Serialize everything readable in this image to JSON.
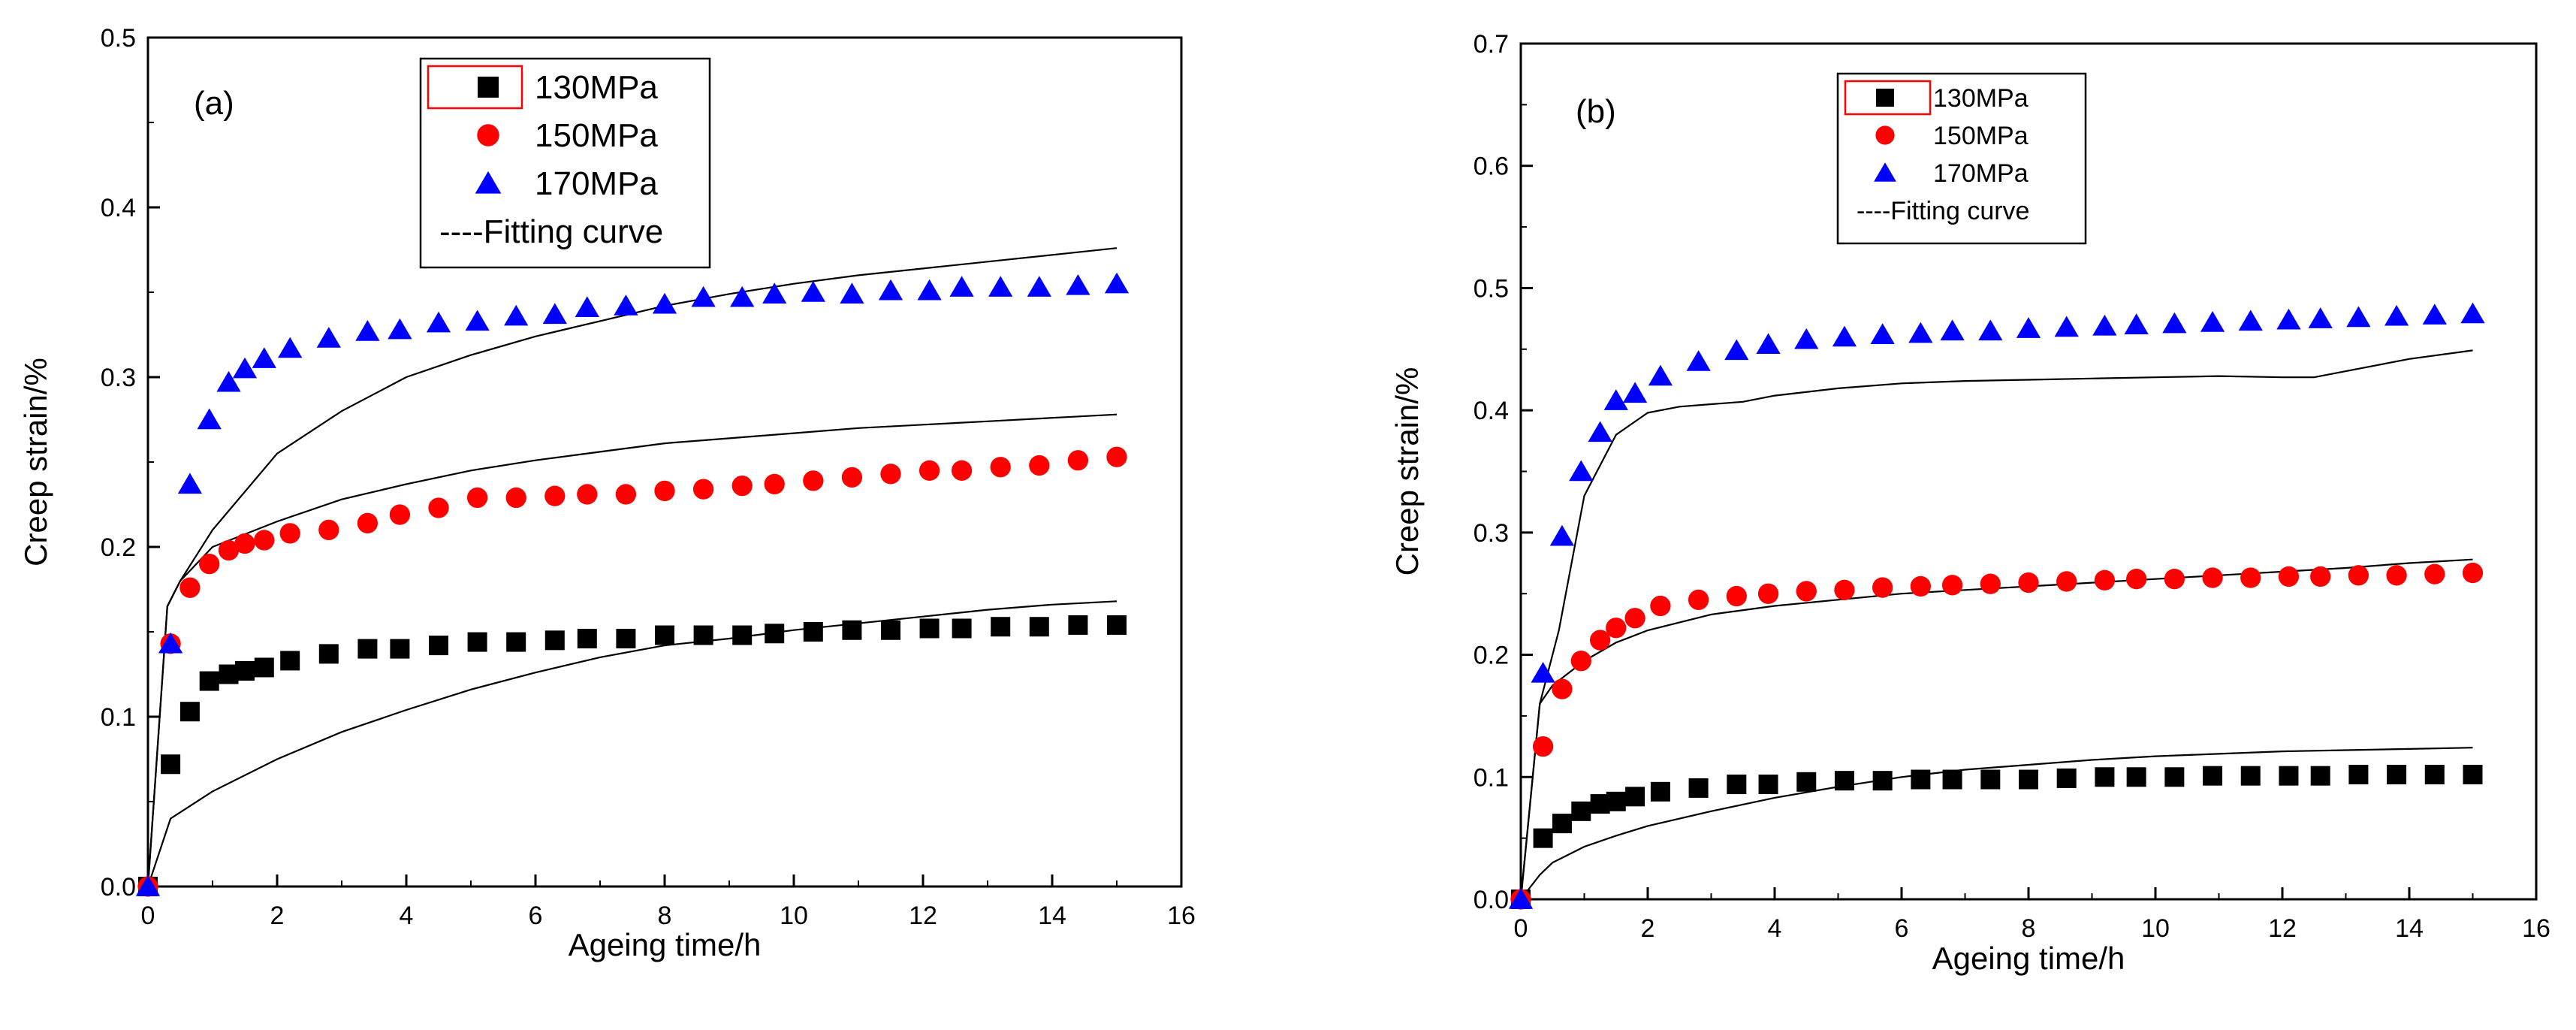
{
  "colors": {
    "s130": "#000000",
    "s150": "#ff0000",
    "s170": "#0000ff",
    "fit": "#000000",
    "legend_highlight": "#ff0000"
  },
  "chart_data": [
    {
      "type": "scatter",
      "panel_label": "(a)",
      "xlabel": "Ageing time/h",
      "ylabel": "Creep strain/%",
      "xlim": [
        0,
        16
      ],
      "ylim": [
        0,
        0.5
      ],
      "xticks": [
        "0",
        "2",
        "4",
        "6",
        "8",
        "10",
        "12",
        "14",
        "16"
      ],
      "yticks": [
        "0.0",
        "0.1",
        "0.2",
        "0.3",
        "0.4",
        "0.5"
      ],
      "legend": {
        "placement": "top-center",
        "entries": [
          "130MPa",
          "150MPa",
          "170MPa",
          "----Fitting curve"
        ]
      },
      "series": [
        {
          "name": "130MPa",
          "marker": "square",
          "color": "#000000",
          "x": [
            0,
            0.35,
            0.65,
            0.95,
            1.25,
            1.5,
            1.8,
            2.2,
            2.8,
            3.4,
            3.9,
            4.5,
            5.1,
            5.7,
            6.3,
            6.8,
            7.4,
            8.0,
            8.6,
            9.2,
            9.7,
            10.3,
            10.9,
            11.5,
            12.1,
            12.6,
            13.2,
            13.8,
            14.4,
            15.0
          ],
          "y": [
            0,
            0.072,
            0.103,
            0.121,
            0.125,
            0.127,
            0.129,
            0.133,
            0.137,
            0.14,
            0.14,
            0.142,
            0.144,
            0.144,
            0.145,
            0.146,
            0.146,
            0.148,
            0.148,
            0.148,
            0.149,
            0.15,
            0.151,
            0.151,
            0.152,
            0.152,
            0.153,
            0.153,
            0.154,
            0.154
          ]
        },
        {
          "name": "150MPa",
          "marker": "circle",
          "color": "#ff0000",
          "x": [
            0,
            0.35,
            0.65,
            0.95,
            1.25,
            1.5,
            1.8,
            2.2,
            2.8,
            3.4,
            3.9,
            4.5,
            5.1,
            5.7,
            6.3,
            6.8,
            7.4,
            8.0,
            8.6,
            9.2,
            9.7,
            10.3,
            10.9,
            11.5,
            12.1,
            12.6,
            13.2,
            13.8,
            14.4,
            15.0
          ],
          "y": [
            0,
            0.143,
            0.176,
            0.19,
            0.198,
            0.202,
            0.204,
            0.208,
            0.21,
            0.214,
            0.219,
            0.223,
            0.229,
            0.229,
            0.23,
            0.231,
            0.231,
            0.233,
            0.234,
            0.236,
            0.237,
            0.239,
            0.241,
            0.243,
            0.245,
            0.245,
            0.247,
            0.248,
            0.251,
            0.253
          ]
        },
        {
          "name": "170MPa",
          "marker": "triangle",
          "color": "#0000ff",
          "x": [
            0,
            0.35,
            0.65,
            0.95,
            1.25,
            1.5,
            1.8,
            2.2,
            2.8,
            3.4,
            3.9,
            4.5,
            5.1,
            5.7,
            6.3,
            6.8,
            7.4,
            8.0,
            8.6,
            9.2,
            9.7,
            10.3,
            10.9,
            11.5,
            12.1,
            12.6,
            13.2,
            13.8,
            14.4,
            15.0
          ],
          "y": [
            0,
            0.143,
            0.237,
            0.275,
            0.297,
            0.305,
            0.311,
            0.317,
            0.323,
            0.327,
            0.328,
            0.332,
            0.333,
            0.336,
            0.337,
            0.341,
            0.342,
            0.343,
            0.347,
            0.347,
            0.349,
            0.35,
            0.349,
            0.351,
            0.351,
            0.353,
            0.353,
            0.353,
            0.354,
            0.355
          ]
        }
      ],
      "fits": [
        {
          "x": [
            0,
            0.35,
            1,
            2,
            3,
            4,
            5,
            6,
            7,
            8,
            9,
            10,
            11,
            12,
            13,
            14,
            15
          ],
          "y": [
            0,
            0.04,
            0.056,
            0.075,
            0.091,
            0.104,
            0.116,
            0.126,
            0.135,
            0.142,
            0.146,
            0.151,
            0.155,
            0.159,
            0.163,
            0.166,
            0.168
          ]
        },
        {
          "x": [
            0,
            0.3,
            0.5,
            1,
            2,
            3,
            4,
            5,
            6,
            7,
            8,
            9,
            10,
            11,
            12,
            13,
            14,
            15
          ],
          "y": [
            0,
            0.165,
            0.18,
            0.2,
            0.215,
            0.228,
            0.237,
            0.245,
            0.251,
            0.256,
            0.261,
            0.264,
            0.267,
            0.27,
            0.272,
            0.274,
            0.276,
            0.278
          ]
        },
        {
          "x": [
            0,
            0.3,
            0.5,
            1,
            2,
            3,
            4,
            5,
            6,
            7,
            8,
            9,
            10,
            11,
            12,
            13,
            14,
            15
          ],
          "y": [
            0,
            0.165,
            0.18,
            0.21,
            0.255,
            0.28,
            0.3,
            0.313,
            0.324,
            0.333,
            0.342,
            0.349,
            0.355,
            0.36,
            0.364,
            0.368,
            0.372,
            0.376
          ]
        }
      ]
    },
    {
      "type": "scatter",
      "panel_label": "(b)",
      "xlabel": "Ageing time/h",
      "ylabel": "Creep strain/%",
      "xlim": [
        0,
        16
      ],
      "ylim": [
        0,
        0.7
      ],
      "xticks": [
        "0",
        "2",
        "4",
        "6",
        "8",
        "10",
        "12",
        "14",
        "16"
      ],
      "yticks": [
        "0.0",
        "0.1",
        "0.2",
        "0.3",
        "0.4",
        "0.5",
        "0.6",
        "0.7"
      ],
      "legend": {
        "placement": "top-left",
        "entries": [
          "130MPa",
          "150MPa",
          "170MPa",
          "----Fitting curve"
        ]
      },
      "series": [
        {
          "name": "130MPa",
          "marker": "square",
          "color": "#000000",
          "x": [
            0,
            0.35,
            0.65,
            0.95,
            1.25,
            1.5,
            1.8,
            2.2,
            2.8,
            3.4,
            3.9,
            4.5,
            5.1,
            5.7,
            6.3,
            6.8,
            7.4,
            8.0,
            8.6,
            9.2,
            9.7,
            10.3,
            10.9,
            11.5,
            12.1,
            12.6,
            13.2,
            13.8,
            14.4,
            15.0
          ],
          "y": [
            0,
            0.05,
            0.062,
            0.072,
            0.078,
            0.08,
            0.084,
            0.088,
            0.091,
            0.094,
            0.094,
            0.096,
            0.097,
            0.097,
            0.098,
            0.098,
            0.098,
            0.098,
            0.099,
            0.1,
            0.1,
            0.1,
            0.101,
            0.101,
            0.101,
            0.101,
            0.102,
            0.102,
            0.102,
            0.102
          ]
        },
        {
          "name": "150MPa",
          "marker": "circle",
          "color": "#ff0000",
          "x": [
            0,
            0.35,
            0.65,
            0.95,
            1.25,
            1.5,
            1.8,
            2.2,
            2.8,
            3.4,
            3.9,
            4.5,
            5.1,
            5.7,
            6.3,
            6.8,
            7.4,
            8.0,
            8.6,
            9.2,
            9.7,
            10.3,
            10.9,
            11.5,
            12.1,
            12.6,
            13.2,
            13.8,
            14.4,
            15.0
          ],
          "y": [
            0,
            0.125,
            0.172,
            0.195,
            0.212,
            0.222,
            0.23,
            0.24,
            0.245,
            0.248,
            0.25,
            0.252,
            0.253,
            0.255,
            0.256,
            0.257,
            0.258,
            0.259,
            0.26,
            0.261,
            0.262,
            0.262,
            0.263,
            0.263,
            0.264,
            0.264,
            0.265,
            0.265,
            0.266,
            0.267
          ]
        },
        {
          "name": "170MPa",
          "marker": "triangle",
          "color": "#0000ff",
          "x": [
            0,
            0.35,
            0.65,
            0.95,
            1.25,
            1.5,
            1.8,
            2.2,
            2.8,
            3.4,
            3.9,
            4.5,
            5.1,
            5.7,
            6.3,
            6.8,
            7.4,
            8.0,
            8.6,
            9.2,
            9.7,
            10.3,
            10.9,
            11.5,
            12.1,
            12.6,
            13.2,
            13.8,
            14.4,
            15.0
          ],
          "y": [
            0,
            0.185,
            0.297,
            0.35,
            0.382,
            0.408,
            0.414,
            0.428,
            0.44,
            0.449,
            0.454,
            0.458,
            0.46,
            0.462,
            0.463,
            0.465,
            0.465,
            0.467,
            0.468,
            0.469,
            0.47,
            0.471,
            0.472,
            0.473,
            0.474,
            0.475,
            0.476,
            0.477,
            0.478,
            0.479
          ]
        }
      ],
      "fits": [
        {
          "x": [
            0,
            0.3,
            0.5,
            1,
            1.5,
            2,
            3,
            4,
            5,
            6,
            7,
            8,
            9,
            10,
            11,
            12,
            13,
            14,
            15
          ],
          "y": [
            0,
            0.02,
            0.03,
            0.043,
            0.052,
            0.06,
            0.072,
            0.083,
            0.092,
            0.1,
            0.106,
            0.11,
            0.114,
            0.117,
            0.119,
            0.121,
            0.122,
            0.123,
            0.124
          ]
        },
        {
          "x": [
            0,
            0.3,
            0.5,
            1,
            1.5,
            2,
            3,
            4,
            5,
            6,
            7,
            8,
            9,
            10,
            11,
            12,
            13,
            14,
            15
          ],
          "y": [
            0,
            0.16,
            0.175,
            0.195,
            0.21,
            0.22,
            0.233,
            0.24,
            0.245,
            0.25,
            0.253,
            0.256,
            0.259,
            0.262,
            0.265,
            0.268,
            0.271,
            0.275,
            0.278
          ]
        },
        {
          "x": [
            0,
            0.3,
            0.6,
            1,
            1.5,
            2,
            2.5,
            3,
            3.5,
            4,
            5,
            6,
            7,
            8,
            9,
            10,
            11,
            12,
            12.5,
            13,
            14,
            15
          ],
          "y": [
            0,
            0.16,
            0.22,
            0.33,
            0.38,
            0.398,
            0.403,
            0.405,
            0.407,
            0.412,
            0.418,
            0.422,
            0.424,
            0.425,
            0.426,
            0.427,
            0.428,
            0.427,
            0.427,
            0.432,
            0.442,
            0.449
          ]
        }
      ]
    }
  ]
}
